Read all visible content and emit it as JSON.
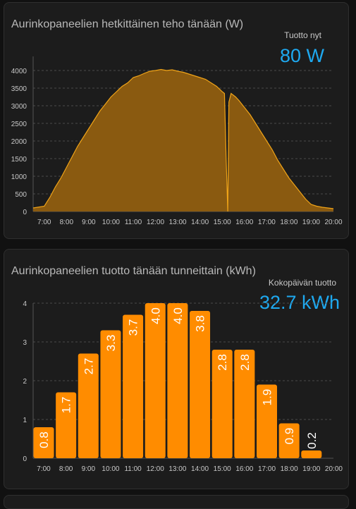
{
  "colors": {
    "accent": "#1ea9f0",
    "power_fill": "#8a5a10",
    "power_line": "#f0a418",
    "bar_fill": "#ff8c00"
  },
  "power_card": {
    "title": "Aurinkopaneelien hetkittäinen teho tänään (W)",
    "stat_label": "Tuotto nyt",
    "stat_value": "80 W"
  },
  "energy_card": {
    "title": "Aurinkopaneelien tuotto tänään tunneittain (kWh)",
    "stat_label": "Kokopäivän tuotto",
    "stat_value": "32.7 kWh"
  },
  "chart_data": [
    {
      "type": "area",
      "x_ticks": [
        "7:00",
        "8:00",
        "9:00",
        "10:00",
        "11:00",
        "12:00",
        "13:00",
        "14:00",
        "15:00",
        "16:00",
        "17:00",
        "18:00",
        "19:00",
        "20:00"
      ],
      "y_ticks": [
        0,
        500,
        1000,
        1500,
        2000,
        2500,
        3000,
        3500,
        4000
      ],
      "ylim": [
        0,
        4000
      ],
      "xlim_hours": [
        6.5,
        20.0
      ],
      "grid": true,
      "series": [
        {
          "x_hours": [
            6.5,
            7.0,
            7.25,
            7.5,
            7.75,
            8.0,
            8.25,
            8.5,
            8.75,
            9.0,
            9.25,
            9.5,
            9.75,
            10.0,
            10.25,
            10.5,
            10.75,
            11.0,
            11.25,
            11.5,
            11.75,
            12.0,
            12.25,
            12.5,
            12.75,
            13.0,
            13.25,
            13.5,
            13.75,
            14.0,
            14.25,
            14.5,
            14.75,
            15.0,
            15.1,
            15.18,
            15.22,
            15.25,
            15.3,
            15.4,
            15.5,
            15.6,
            15.75,
            16.0,
            16.25,
            16.5,
            16.75,
            17.0,
            17.25,
            17.5,
            17.75,
            18.0,
            18.25,
            18.5,
            18.75,
            19.0,
            19.25,
            19.5,
            19.75,
            20.0
          ],
          "values": [
            100,
            150,
            400,
            700,
            950,
            1250,
            1550,
            1850,
            2100,
            2350,
            2600,
            2850,
            3050,
            3250,
            3400,
            3550,
            3650,
            3800,
            3850,
            3920,
            3980,
            4000,
            4030,
            4000,
            4020,
            3980,
            3950,
            3900,
            3850,
            3800,
            3750,
            3650,
            3550,
            3400,
            3350,
            1450,
            600,
            0,
            3100,
            3350,
            3300,
            3250,
            3150,
            2950,
            2750,
            2500,
            2250,
            2000,
            1750,
            1450,
            1200,
            950,
            750,
            550,
            350,
            200,
            150,
            120,
            100,
            80
          ]
        }
      ]
    },
    {
      "type": "bar",
      "categories": [
        "7:00",
        "8:00",
        "9:00",
        "10:00",
        "11:00",
        "12:00",
        "13:00",
        "14:00",
        "15:00",
        "16:00",
        "17:00",
        "18:00",
        "19:00"
      ],
      "x_ticks": [
        "7:00",
        "8:00",
        "9:00",
        "10:00",
        "11:00",
        "12:00",
        "13:00",
        "14:00",
        "15:00",
        "16:00",
        "17:00",
        "18:00",
        "19:00",
        "20:00"
      ],
      "values": [
        0.8,
        1.7,
        2.7,
        3.3,
        3.7,
        4.0,
        4.0,
        3.8,
        2.8,
        2.8,
        1.9,
        0.9,
        0.2
      ],
      "y_ticks": [
        0,
        1,
        2,
        3,
        4
      ],
      "ylim": [
        0,
        4
      ],
      "grid": true
    }
  ]
}
